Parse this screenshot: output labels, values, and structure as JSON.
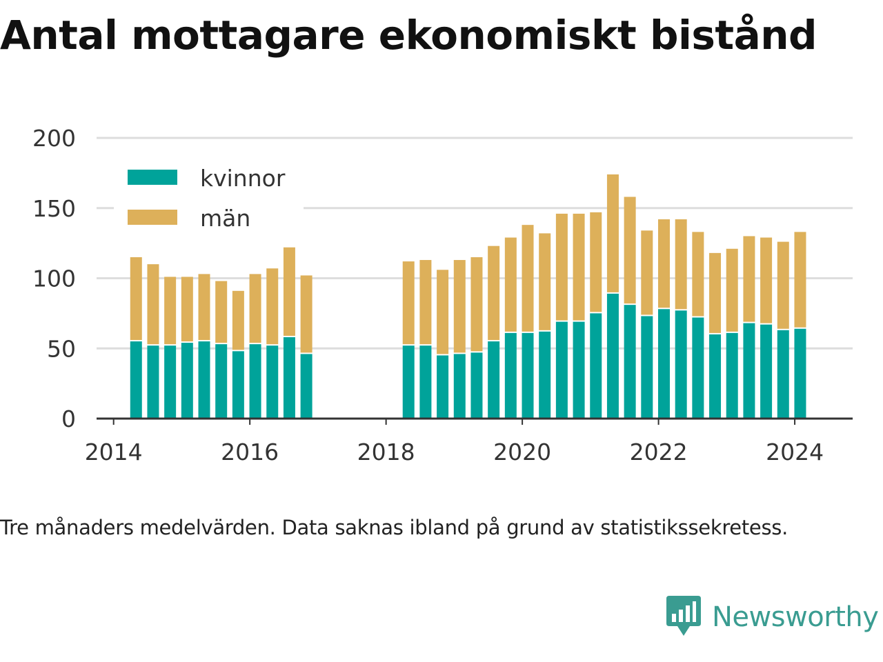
{
  "title": "Antal mottagare ekonomiskt bistånd",
  "footnote": "Tre månaders medelvärden. Data saknas ibland på grund av statistikssekretess.",
  "brand": {
    "name": "Newsworthy",
    "logo_icon": "bar-chart-speech-bubble-icon",
    "color": "#3a9c91"
  },
  "chart_data": {
    "type": "bar",
    "stacked": true,
    "title": "Antal mottagare ekonomiskt bistånd",
    "xlabel": "",
    "ylabel": "",
    "xlim": [
      2013.75,
      2024.85
    ],
    "ylim": [
      0,
      200
    ],
    "yticks": [
      0,
      50,
      100,
      150,
      200
    ],
    "xticks": [
      2014,
      2016,
      2018,
      2020,
      2022,
      2024
    ],
    "grid": "horizontal",
    "legend": "top-left",
    "x": [
      2014.33,
      2014.58,
      2014.83,
      2015.08,
      2015.33,
      2015.58,
      2015.83,
      2016.08,
      2016.33,
      2016.58,
      2016.83,
      2018.33,
      2018.58,
      2018.83,
      2019.08,
      2019.33,
      2019.58,
      2019.83,
      2020.08,
      2020.33,
      2020.58,
      2020.83,
      2021.08,
      2021.33,
      2021.58,
      2021.83,
      2022.08,
      2022.33,
      2022.58,
      2022.83,
      2023.08,
      2023.33,
      2023.58,
      2023.83,
      2024.08
    ],
    "series": [
      {
        "name": "kvinnor",
        "color": "#00a39a",
        "values": [
          55,
          52,
          52,
          54,
          55,
          53,
          48,
          53,
          52,
          58,
          46,
          52,
          52,
          45,
          46,
          47,
          55,
          61,
          61,
          62,
          69,
          69,
          75,
          89,
          81,
          73,
          78,
          77,
          72,
          60,
          61,
          68,
          67,
          63,
          64
        ]
      },
      {
        "name": "män",
        "color": "#ddb05a",
        "values": [
          60,
          58,
          49,
          47,
          48,
          45,
          43,
          50,
          55,
          64,
          56,
          60,
          61,
          61,
          67,
          68,
          68,
          68,
          77,
          70,
          77,
          77,
          72,
          85,
          77,
          61,
          64,
          65,
          61,
          58,
          60,
          62,
          62,
          63,
          69
        ]
      }
    ]
  }
}
